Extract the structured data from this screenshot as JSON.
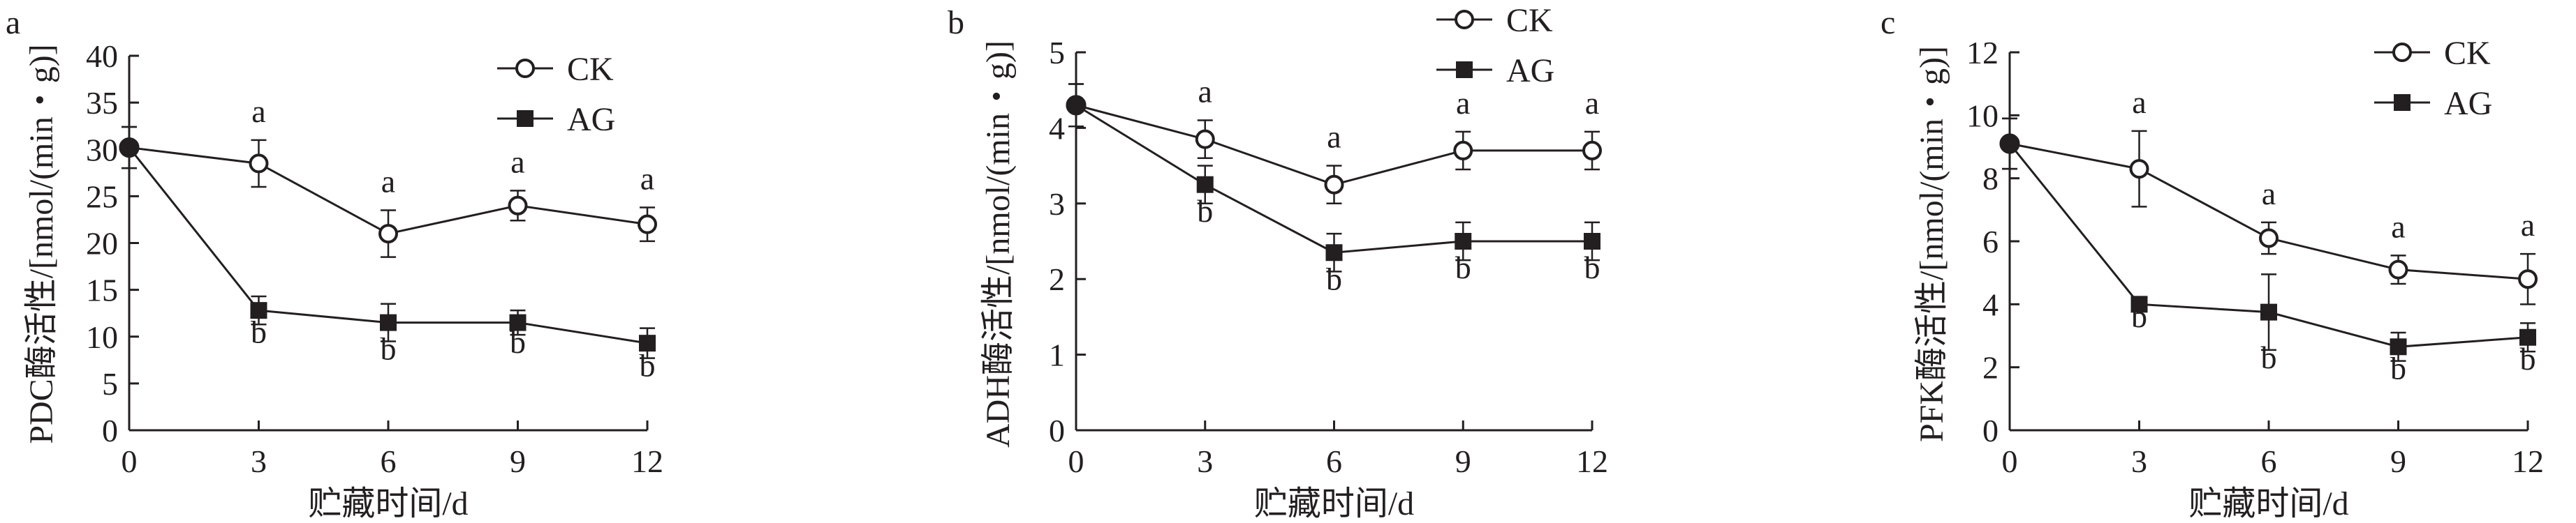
{
  "figure": {
    "colors": {
      "ink": "#231f20",
      "background": "#ffffff"
    },
    "x_ticks": [
      "0",
      "3",
      "6",
      "9",
      "12"
    ],
    "xlabel": "贮藏时间/d"
  },
  "chart_data": [
    {
      "type": "line",
      "panel_label": "a",
      "ylabel": "PDC酶活性/[nmol/(min・g)]",
      "xlabel": "贮藏时间/d",
      "x": [
        0,
        3,
        6,
        9,
        12
      ],
      "xlim": [
        0,
        12
      ],
      "ylim": [
        0,
        40
      ],
      "yticks": [
        0,
        5,
        10,
        15,
        20,
        25,
        30,
        35,
        40
      ],
      "yticklabels": [
        "0",
        "5",
        "10",
        "15",
        "20",
        "25",
        "30",
        "35",
        "40"
      ],
      "grid": false,
      "legend": "top-right",
      "series": [
        {
          "name": "CK",
          "marker": "open-circle",
          "values": [
            30.2,
            28.5,
            21.0,
            24.0,
            22.0
          ],
          "errors": [
            2.2,
            2.5,
            2.5,
            1.6,
            1.8
          ],
          "labels": [
            "",
            "a",
            "a",
            "a",
            "a"
          ]
        },
        {
          "name": "AG",
          "marker": "filled-square",
          "values": [
            30.2,
            12.8,
            11.5,
            11.5,
            9.3
          ],
          "errors": [
            2.2,
            1.5,
            2.0,
            1.3,
            1.6
          ],
          "labels": [
            "",
            "b",
            "b",
            "b",
            "b"
          ]
        }
      ]
    },
    {
      "type": "line",
      "panel_label": "b",
      "ylabel": "ADH酶活性/[nmol/(min・g)]",
      "xlabel": "贮藏时间/d",
      "x": [
        0,
        3,
        6,
        9,
        12
      ],
      "xlim": [
        0,
        12
      ],
      "ylim": [
        0,
        5
      ],
      "yticks": [
        0,
        1,
        2,
        3,
        4,
        5
      ],
      "yticklabels": [
        "0",
        "1",
        "2",
        "3",
        "4",
        "5"
      ],
      "grid": false,
      "legend": "top-right",
      "series": [
        {
          "name": "CK",
          "marker": "open-circle",
          "values": [
            4.3,
            3.85,
            3.25,
            3.7,
            3.7
          ],
          "errors": [
            0.28,
            0.25,
            0.25,
            0.25,
            0.25
          ],
          "labels": [
            "",
            "a",
            "a",
            "a",
            "a"
          ]
        },
        {
          "name": "AG",
          "marker": "filled-square",
          "values": [
            4.3,
            3.25,
            2.35,
            2.5,
            2.5
          ],
          "errors": [
            0.28,
            0.25,
            0.25,
            0.25,
            0.25
          ],
          "labels": [
            "",
            "b",
            "b",
            "b",
            "b"
          ]
        }
      ]
    },
    {
      "type": "line",
      "panel_label": "c",
      "ylabel": "PFK酶活性/[nmol/(min・g)]",
      "xlabel": "贮藏时间/d",
      "x": [
        0,
        3,
        6,
        9,
        12
      ],
      "xlim": [
        0,
        12
      ],
      "ylim": [
        0,
        12
      ],
      "yticks": [
        0,
        2,
        4,
        6,
        8,
        10,
        12
      ],
      "yticklabels": [
        "0",
        "2",
        "4",
        "6",
        "8",
        "10",
        "12"
      ],
      "grid": false,
      "legend": "top-right",
      "series": [
        {
          "name": "CK",
          "marker": "open-circle",
          "values": [
            9.1,
            8.3,
            6.1,
            5.1,
            4.8
          ],
          "errors": [
            0.8,
            1.2,
            0.5,
            0.45,
            0.8
          ],
          "labels": [
            "",
            "a",
            "a",
            "a",
            "a"
          ]
        },
        {
          "name": "AG",
          "marker": "filled-square",
          "values": [
            9.1,
            4.0,
            3.75,
            2.65,
            2.95
          ],
          "errors": [
            0.8,
            0.15,
            1.2,
            0.45,
            0.45
          ],
          "labels": [
            "",
            "b",
            "b",
            "b",
            "b"
          ]
        }
      ]
    }
  ]
}
